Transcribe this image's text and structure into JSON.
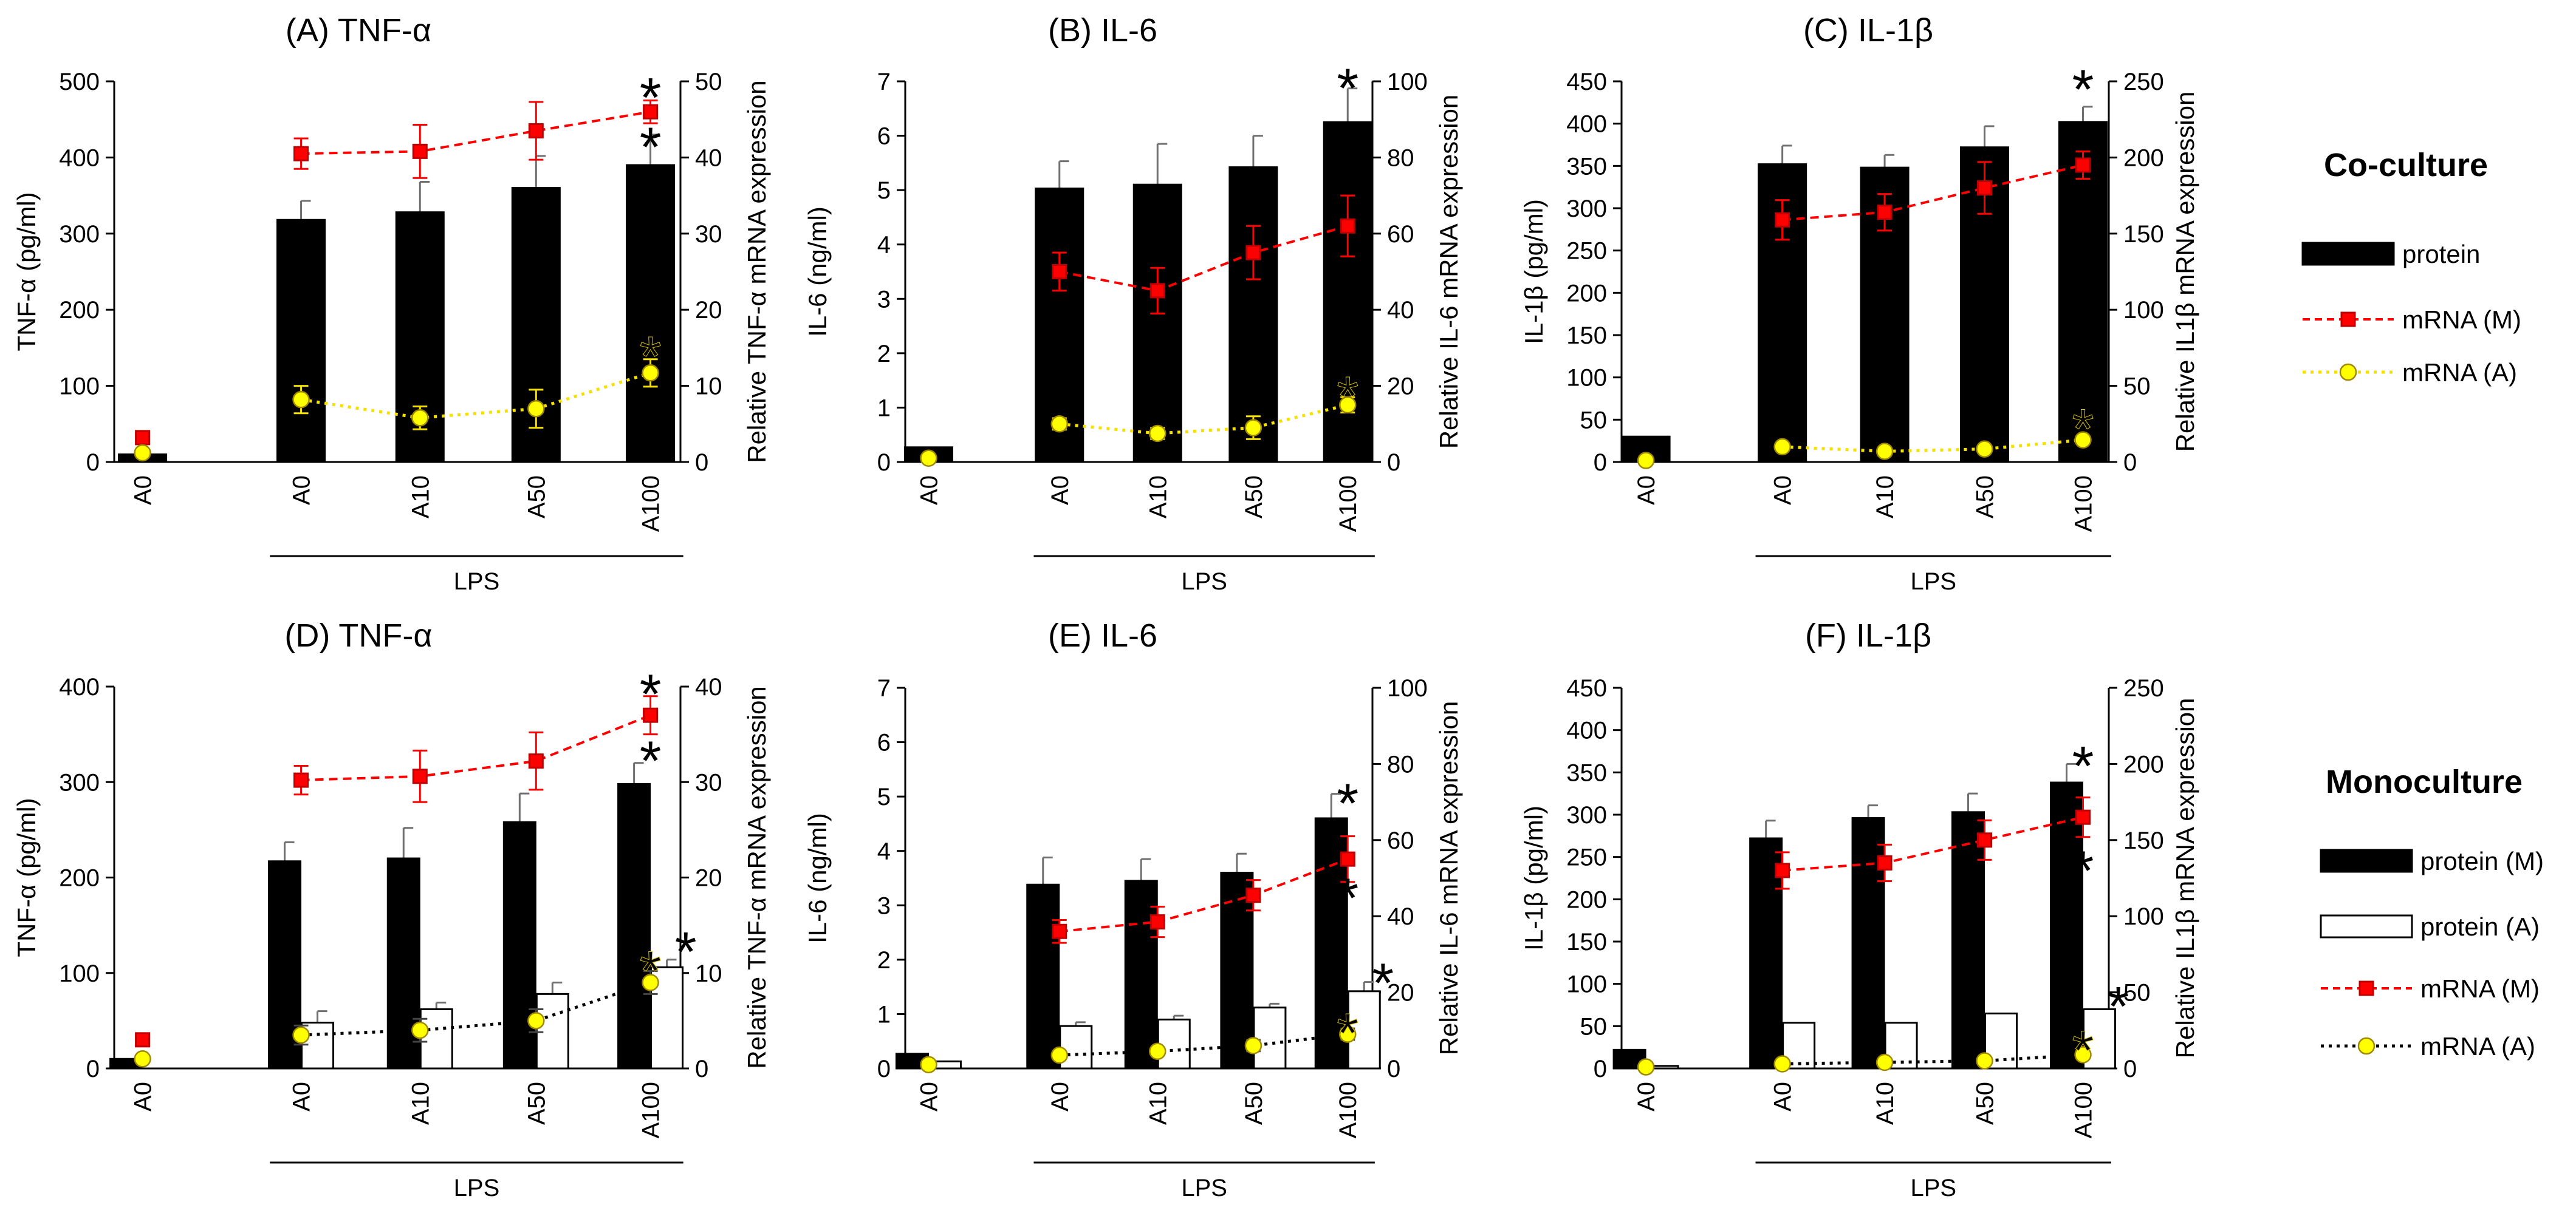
{
  "figure": {
    "legends": {
      "coculture": {
        "title": "Co-culture",
        "items": [
          {
            "label": "protein",
            "kind": "bar-black"
          },
          {
            "label": "mRNA (M)",
            "kind": "line-red"
          },
          {
            "label": "mRNA (A)",
            "kind": "line-yellow"
          }
        ]
      },
      "monoculture": {
        "title": "Monoculture",
        "items": [
          {
            "label": "protein (M)",
            "kind": "bar-black"
          },
          {
            "label": "protein (A)",
            "kind": "bar-white"
          },
          {
            "label": "mRNA (M)",
            "kind": "line-red"
          },
          {
            "label": "mRNA (A)",
            "kind": "line-black-dotted"
          }
        ]
      }
    },
    "colors": {
      "bar": "#000000",
      "mrna_m": "#ff0000",
      "mrna_m_marker": "#c00000",
      "mrna_a": "#ffff00",
      "mrna_a_line": "#f5e000",
      "errorbar": "#707070",
      "axis": "#000000"
    }
  },
  "chart_data": [
    {
      "id": "A",
      "type": "bar",
      "title": "(A) TNF-α",
      "ylabel": "TNF-α (pg/ml)",
      "y2label": "Relative TNF-α mRNA expression",
      "categories": [
        "A0",
        "A0",
        "A10",
        "A50",
        "A100"
      ],
      "group_label": "LPS",
      "ylim": [
        0,
        500
      ],
      "yticks": [
        0,
        100,
        200,
        300,
        400,
        500
      ],
      "y2lim": [
        0,
        50
      ],
      "y2ticks": [
        0,
        10,
        20,
        30,
        40,
        50
      ],
      "series": [
        {
          "name": "protein",
          "kind": "bar",
          "color": "black",
          "values": [
            10,
            318,
            328,
            360,
            390
          ],
          "errors": [
            0,
            25,
            40,
            42,
            40
          ]
        },
        {
          "name": "mRNA (M)",
          "kind": "line",
          "axis": "y2",
          "color": "red",
          "line_style": "dashed",
          "values": [
            3.2,
            40.5,
            40.8,
            43.5,
            46
          ],
          "errors": [
            0,
            2,
            3.5,
            3.8,
            1.5
          ],
          "connect_from": 1
        },
        {
          "name": "mRNA (A)",
          "kind": "line",
          "axis": "y2",
          "color": "yellow",
          "line_style": "dotted",
          "values": [
            1.2,
            8.2,
            5.8,
            7,
            11.7
          ],
          "errors": [
            0,
            1.8,
            1.5,
            2.5,
            1.8
          ],
          "connect_from": 1
        }
      ],
      "significance": [
        {
          "index": 4,
          "color": "red",
          "value": 49.5,
          "axis": "y2"
        },
        {
          "index": 4,
          "color": "black",
          "value": 430,
          "axis": "y"
        },
        {
          "index": 4,
          "color": "yellow",
          "value": 15.5,
          "axis": "y2"
        }
      ]
    },
    {
      "id": "B",
      "type": "bar",
      "title": "(B) IL-6",
      "ylabel": "IL-6 (ng/ml)",
      "y2label": "Relative IL-6  mRNA expression",
      "categories": [
        "A0",
        "A0",
        "A10",
        "A50",
        "A100"
      ],
      "group_label": "LPS",
      "ylim": [
        0,
        7
      ],
      "yticks": [
        0,
        1,
        2,
        3,
        4,
        5,
        6,
        7
      ],
      "y2lim": [
        0,
        100
      ],
      "y2ticks": [
        0,
        20,
        40,
        60,
        80,
        100
      ],
      "series": [
        {
          "name": "protein",
          "kind": "bar",
          "color": "black",
          "values": [
            0.27,
            5.03,
            5.1,
            5.42,
            6.25
          ],
          "errors": [
            0,
            0.5,
            0.75,
            0.58,
            0.62
          ]
        },
        {
          "name": "mRNA (M)",
          "kind": "line",
          "axis": "y2",
          "color": "red",
          "line_style": "dashed",
          "values": [
            null,
            50,
            45,
            55,
            62
          ],
          "errors": [
            0,
            5,
            6,
            7,
            8
          ],
          "connect_from": 1
        },
        {
          "name": "mRNA (A)",
          "kind": "line",
          "axis": "y2",
          "color": "yellow",
          "line_style": "dotted",
          "values": [
            1,
            10,
            7.5,
            9,
            15
          ],
          "errors": [
            0,
            1.5,
            1.5,
            3,
            2
          ],
          "connect_from": 1
        }
      ],
      "significance": [
        {
          "index": 4,
          "color": "black",
          "value": 7.1,
          "axis": "y"
        },
        {
          "index": 4,
          "color": "red",
          "value": 74,
          "axis": "y2"
        },
        {
          "index": 4,
          "color": "yellow",
          "value": 20.5,
          "axis": "y2"
        }
      ]
    },
    {
      "id": "C",
      "type": "bar",
      "title": "(C) IL-1β",
      "ylabel": "IL-1β (pg/ml)",
      "y2label": "Relative IL1β  mRNA expression",
      "categories": [
        "A0",
        "A0",
        "A10",
        "A50",
        "A100"
      ],
      "group_label": "LPS",
      "ylim": [
        0,
        450
      ],
      "yticks": [
        0,
        50,
        100,
        150,
        200,
        250,
        300,
        350,
        400,
        450
      ],
      "y2lim": [
        0,
        250
      ],
      "y2ticks": [
        0,
        50,
        100,
        150,
        200,
        250
      ],
      "series": [
        {
          "name": "protein",
          "kind": "bar",
          "color": "black",
          "values": [
            30,
            352,
            348,
            372,
            402
          ],
          "errors": [
            0,
            22,
            15,
            25,
            18
          ]
        },
        {
          "name": "mRNA (M)",
          "kind": "line",
          "axis": "y2",
          "color": "red",
          "line_style": "dashed",
          "values": [
            null,
            159,
            164,
            180,
            195
          ],
          "errors": [
            0,
            13,
            12,
            17,
            9
          ],
          "connect_from": 1
        },
        {
          "name": "mRNA (A)",
          "kind": "line",
          "axis": "y2",
          "color": "yellow",
          "line_style": "dotted",
          "values": [
            1,
            10,
            7,
            8.5,
            14.5
          ],
          "errors": [
            0,
            1.5,
            1.5,
            2,
            2
          ],
          "connect_from": 1
        }
      ],
      "significance": [
        {
          "index": 4,
          "color": "black",
          "value": 455,
          "axis": "y"
        },
        {
          "index": 4,
          "color": "red",
          "value": 163,
          "axis": "y2"
        },
        {
          "index": 4,
          "color": "yellow",
          "value": 30,
          "axis": "y2"
        }
      ]
    },
    {
      "id": "D",
      "type": "bar",
      "title": "(D) TNF-α",
      "ylabel": "TNF-α (pg/ml)",
      "y2label": "Relative TNF-α mRNA expression",
      "categories": [
        "A0",
        "A0",
        "A10",
        "A50",
        "A100"
      ],
      "group_label": "LPS",
      "ylim": [
        0,
        400
      ],
      "yticks": [
        0,
        100,
        200,
        300,
        400
      ],
      "y2lim": [
        0,
        40
      ],
      "y2ticks": [
        0,
        10,
        20,
        30,
        40
      ],
      "series": [
        {
          "name": "protein (M)",
          "kind": "bar",
          "color": "black",
          "values": [
            10,
            217,
            220,
            258,
            298
          ],
          "errors": [
            0,
            20,
            32,
            30,
            22
          ]
        },
        {
          "name": "protein (A)",
          "kind": "bar",
          "color": "white",
          "values": [
            null,
            48,
            62,
            78,
            106
          ],
          "errors": [
            0,
            12,
            7,
            12,
            8
          ]
        },
        {
          "name": "mRNA (M)",
          "kind": "line",
          "axis": "y2",
          "color": "red",
          "line_style": "dashed",
          "values": [
            3,
            30.2,
            30.6,
            32.2,
            37
          ],
          "errors": [
            0,
            1.5,
            2.7,
            3,
            2
          ],
          "connect_from": 1
        },
        {
          "name": "mRNA (A)",
          "kind": "line",
          "axis": "y2",
          "color": "yellow",
          "line_style": "dotted-black",
          "values": [
            1,
            3.5,
            4,
            5,
            9
          ],
          "errors": [
            0,
            1,
            1.2,
            1.2,
            1.2
          ],
          "connect_from": 1
        }
      ],
      "significance": [
        {
          "index": 4,
          "color": "red",
          "value": 40.5,
          "axis": "y2"
        },
        {
          "index": 4,
          "color": "black",
          "value": 335,
          "axis": "y"
        },
        {
          "index": 4,
          "color": "yellow",
          "value": 11.5,
          "axis": "y2"
        },
        {
          "index": 4,
          "color": "black",
          "value": 135,
          "axis": "y",
          "offset": "right"
        }
      ]
    },
    {
      "id": "E",
      "type": "bar",
      "title": "(E) IL-6",
      "ylabel": "IL-6 (ng/ml)",
      "y2label": "Relative IL-6  mRNA expression",
      "categories": [
        "A0",
        "A0",
        "A10",
        "A50",
        "A100"
      ],
      "group_label": "LPS",
      "ylim": [
        0,
        7
      ],
      "yticks": [
        0,
        1,
        2,
        3,
        4,
        5,
        6,
        7
      ],
      "y2lim": [
        0,
        100
      ],
      "y2ticks": [
        0,
        20,
        40,
        60,
        80,
        100
      ],
      "series": [
        {
          "name": "protein (M)",
          "kind": "bar",
          "color": "black",
          "values": [
            0.27,
            3.38,
            3.45,
            3.6,
            4.6
          ],
          "errors": [
            0,
            0.5,
            0.4,
            0.35,
            0.45
          ]
        },
        {
          "name": "protein (A)",
          "kind": "bar",
          "color": "white",
          "values": [
            0.13,
            0.78,
            0.9,
            1.12,
            1.42
          ],
          "errors": [
            0,
            0.07,
            0.07,
            0.07,
            0.17
          ]
        },
        {
          "name": "mRNA (M)",
          "kind": "line",
          "axis": "y2",
          "color": "red",
          "line_style": "dashed",
          "values": [
            null,
            36,
            38.5,
            45.5,
            55
          ],
          "errors": [
            0,
            3,
            4,
            4,
            6
          ],
          "connect_from": 1
        },
        {
          "name": "mRNA (A)",
          "kind": "line",
          "axis": "y2",
          "color": "yellow",
          "line_style": "dotted-black",
          "values": [
            1,
            3.5,
            4.5,
            6,
            9
          ],
          "errors": [
            0,
            1,
            1,
            1.5,
            1.5
          ],
          "connect_from": 1
        }
      ],
      "significance": [
        {
          "index": 4,
          "color": "black",
          "value": 5.1,
          "axis": "y"
        },
        {
          "index": 4,
          "color": "red",
          "value": 48,
          "axis": "y2"
        },
        {
          "index": 4,
          "color": "yellow",
          "value": 12.5,
          "axis": "y2"
        },
        {
          "index": 4,
          "color": "black",
          "value": 1.8,
          "axis": "y",
          "offset": "right"
        }
      ]
    },
    {
      "id": "F",
      "type": "bar",
      "title": "(F) IL-1β",
      "ylabel": "IL-1β (pg/ml)",
      "y2label": "Relative IL1β  mRNA expression",
      "categories": [
        "A0",
        "A0",
        "A10",
        "A50",
        "A100"
      ],
      "group_label": "LPS",
      "ylim": [
        0,
        450
      ],
      "yticks": [
        0,
        50,
        100,
        150,
        200,
        250,
        300,
        350,
        400,
        450
      ],
      "y2lim": [
        0,
        250
      ],
      "y2ticks": [
        0,
        50,
        100,
        150,
        200,
        250
      ],
      "series": [
        {
          "name": "protein (M)",
          "kind": "bar",
          "color": "black",
          "values": [
            22,
            272,
            296,
            303,
            338
          ],
          "errors": [
            0,
            21,
            15,
            22,
            22
          ]
        },
        {
          "name": "protein (A)",
          "kind": "bar",
          "color": "white",
          "values": [
            3,
            54,
            54,
            65,
            70
          ],
          "errors": [
            0,
            0,
            0,
            0,
            0
          ]
        },
        {
          "name": "mRNA (M)",
          "kind": "line",
          "axis": "y2",
          "color": "red",
          "line_style": "dashed",
          "values": [
            null,
            130,
            135,
            150,
            165
          ],
          "errors": [
            0,
            12,
            12,
            13,
            13
          ],
          "connect_from": 1
        },
        {
          "name": "mRNA (A)",
          "kind": "line",
          "axis": "y2",
          "color": "yellow",
          "line_style": "dotted-black",
          "values": [
            1,
            3,
            4,
            5,
            9
          ],
          "errors": [
            0,
            1,
            1,
            1,
            1.5
          ],
          "connect_from": 1
        }
      ],
      "significance": [
        {
          "index": 4,
          "color": "black",
          "value": 372,
          "axis": "y"
        },
        {
          "index": 4,
          "color": "red",
          "value": 138,
          "axis": "y2"
        },
        {
          "index": 4,
          "color": "yellow",
          "value": 20,
          "axis": "y2"
        },
        {
          "index": 4,
          "color": "black",
          "value": 88,
          "axis": "y",
          "offset": "right"
        }
      ]
    }
  ]
}
